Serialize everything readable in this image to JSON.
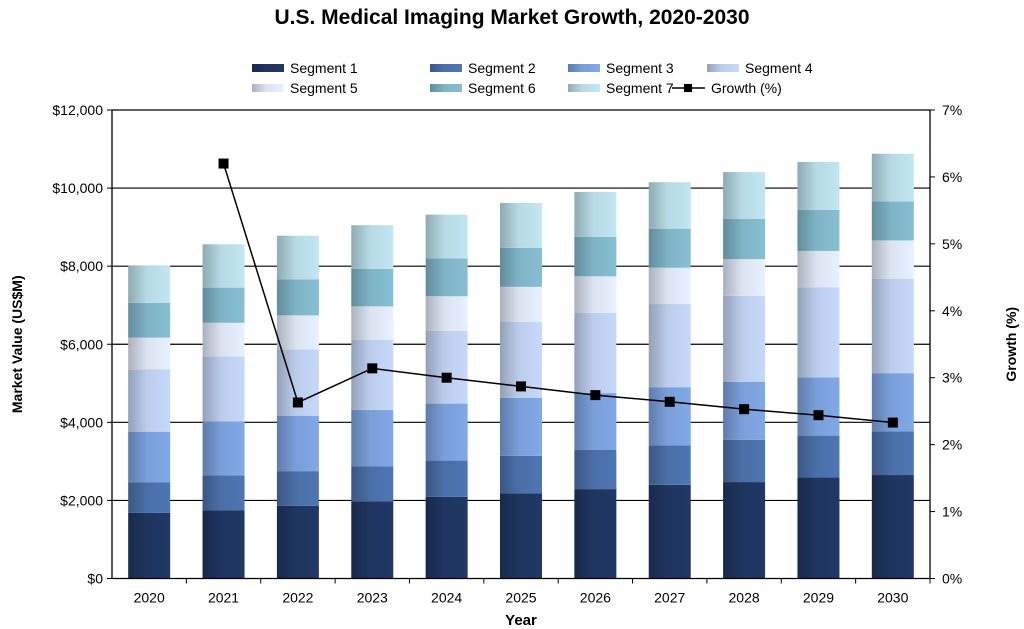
{
  "chart_data": {
    "type": "bar",
    "stacked": true,
    "title": "U.S. Medical Imaging Market Growth, 2020-2030",
    "xlabel": "Year",
    "ylabel": "Market Value (US$M)",
    "y2label": "Growth (%)",
    "categories": [
      "2020",
      "2021",
      "2022",
      "2023",
      "2024",
      "2025",
      "2026",
      "2027",
      "2028",
      "2029",
      "2030"
    ],
    "ylim": [
      0,
      12000
    ],
    "y_ticks": [
      "$0",
      "$2,000",
      "$4,000",
      "$6,000",
      "$8,000",
      "$10,000",
      "$12,000"
    ],
    "y2lim": [
      0,
      7
    ],
    "y2_ticks": [
      "0%",
      "1%",
      "2%",
      "3%",
      "4%",
      "5%",
      "6%",
      "7%"
    ],
    "grid": true,
    "legend_position": "top",
    "series": [
      {
        "name": "Segment 1",
        "color": "#1f3560",
        "values": [
          1680,
          1750,
          1860,
          1980,
          2090,
          2180,
          2290,
          2400,
          2470,
          2590,
          2650
        ]
      },
      {
        "name": "Segment 2",
        "color": "#4a6fa8",
        "values": [
          780,
          890,
          890,
          890,
          930,
          960,
          1010,
          1010,
          1080,
          1070,
          1120
        ]
      },
      {
        "name": "Segment 3",
        "color": "#7a9fda",
        "values": [
          1300,
          1380,
          1420,
          1450,
          1460,
          1490,
          1450,
          1490,
          1490,
          1490,
          1490
        ]
      },
      {
        "name": "Segment 4",
        "color": "#bccdec",
        "values": [
          1600,
          1670,
          1700,
          1790,
          1860,
          1940,
          2050,
          2130,
          2200,
          2310,
          2420
        ]
      },
      {
        "name": "Segment 5",
        "color": "#dbe3f1",
        "values": [
          810,
          860,
          870,
          860,
          890,
          900,
          940,
          930,
          940,
          930,
          980
        ]
      },
      {
        "name": "Segment 6",
        "color": "#7fb4c6",
        "values": [
          890,
          900,
          920,
          960,
          970,
          1000,
          1010,
          1000,
          1030,
          1050,
          1000
        ]
      },
      {
        "name": "Segment 7",
        "color": "#b7dae4",
        "values": [
          960,
          1110,
          1120,
          1120,
          1120,
          1150,
          1150,
          1190,
          1200,
          1230,
          1220
        ]
      }
    ],
    "line_series": {
      "name": "Growth (%)",
      "color": "#000000",
      "axis": "right",
      "values": [
        null,
        6.2,
        2.63,
        3.14,
        3.0,
        2.87,
        2.74,
        2.64,
        2.53,
        2.44,
        2.33
      ]
    }
  }
}
